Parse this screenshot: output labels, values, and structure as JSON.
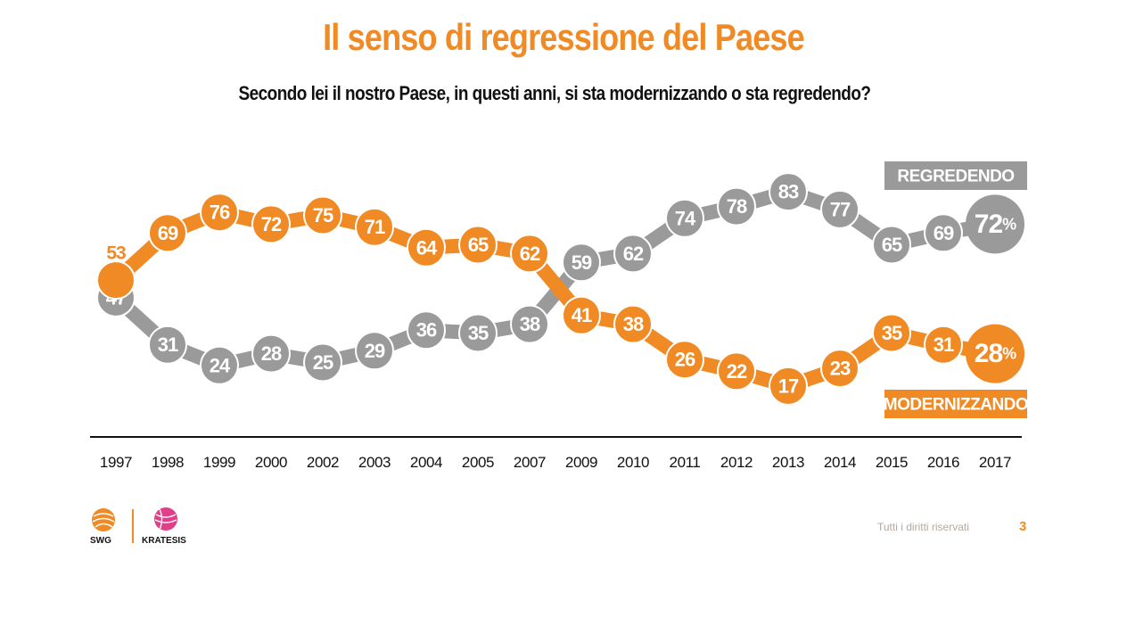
{
  "title": "Il senso di regressione del Paese",
  "subtitle": "Secondo lei il nostro Paese, in questi anni, si sta modernizzando o sta regredendo?",
  "footer": {
    "rights": "Tutti i diritti riservati",
    "page": "3"
  },
  "logos": {
    "left": "SWG",
    "right": "KRATESIS"
  },
  "colors": {
    "modernizzando": "#f08a24",
    "regredendo": "#9a9a9a",
    "accent": "#f08a24"
  },
  "chart_data": {
    "type": "line",
    "categories": [
      "1997",
      "1998",
      "1999",
      "2000",
      "2002",
      "2003",
      "2004",
      "2005",
      "2007",
      "2009",
      "2010",
      "2011",
      "2012",
      "2013",
      "2014",
      "2015",
      "2016",
      "2017"
    ],
    "series": [
      {
        "name": "REGREDENDO",
        "values": [
          47,
          31,
          24,
          28,
          25,
          29,
          36,
          35,
          38,
          59,
          62,
          74,
          78,
          83,
          77,
          65,
          69,
          72
        ]
      },
      {
        "name": "MODERNIZZANDO",
        "values": [
          53,
          69,
          76,
          72,
          75,
          71,
          64,
          65,
          62,
          41,
          38,
          26,
          22,
          17,
          23,
          35,
          31,
          28
        ]
      }
    ],
    "last_value_suffix": "%",
    "ylim": [
      0,
      100
    ],
    "grid": false,
    "legend": "series labels at right end"
  }
}
